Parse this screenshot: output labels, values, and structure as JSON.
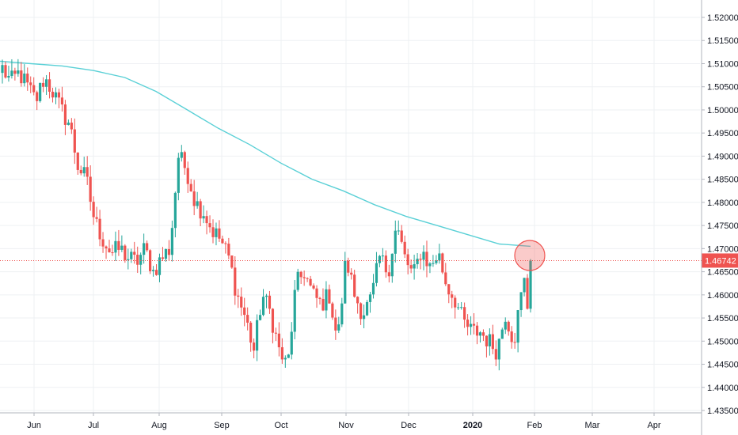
{
  "chart_data": {
    "type": "candlestick",
    "title": "",
    "ylabel": "",
    "xlabel": "",
    "ylim": [
      1.4335,
      1.5225
    ],
    "grid": true,
    "y_ticks": [
      "1.52000",
      "1.51500",
      "1.51000",
      "1.50500",
      "1.50000",
      "1.49500",
      "1.49000",
      "1.48500",
      "1.48000",
      "1.47500",
      "1.47000",
      "1.46500",
      "1.46000",
      "1.45500",
      "1.45000",
      "1.44500",
      "1.44000",
      "1.43500"
    ],
    "x_ticks": [
      {
        "label": "Jun",
        "bold": false
      },
      {
        "label": "Jul",
        "bold": false
      },
      {
        "label": "Aug",
        "bold": false
      },
      {
        "label": "Sep",
        "bold": false
      },
      {
        "label": "Oct",
        "bold": false
      },
      {
        "label": "Nov",
        "bold": false
      },
      {
        "label": "Dec",
        "bold": false
      },
      {
        "label": "2020",
        "bold": true
      },
      {
        "label": "Feb",
        "bold": false
      },
      {
        "label": "Mar",
        "bold": false
      },
      {
        "label": "Apr",
        "bold": false
      }
    ],
    "current_price": {
      "value": 1.46742,
      "label": "1.46742"
    },
    "moving_average": [
      [
        1.5105,
        1.51,
        1.5095,
        1.5085,
        1.507,
        1.504,
        1.5,
        1.496,
        1.4925,
        1.4885,
        1.485,
        1.4825,
        1.4795,
        1.477,
        1.475,
        1.473,
        1.471,
        1.4705
      ]
    ],
    "colors": {
      "up": "#26a69a",
      "down": "#ef5350",
      "ma": "#5ad0d6",
      "price_line": "#ef5350",
      "grid": "#eef0f3",
      "highlight": "#ef5350"
    },
    "anchors": [
      1.509,
      1.506,
      1.508,
      1.505,
      1.502,
      1.507,
      1.504,
      1.5,
      1.497,
      1.488,
      1.485,
      1.476,
      1.472,
      1.469,
      1.47,
      1.468,
      1.467,
      1.47,
      1.465,
      1.468,
      1.47,
      1.49,
      1.487,
      1.48,
      1.478,
      1.474,
      1.472,
      1.468,
      1.46,
      1.455,
      1.448,
      1.46,
      1.456,
      1.448,
      1.444,
      1.462,
      1.465,
      1.46,
      1.458,
      1.46,
      1.45,
      1.468,
      1.46,
      1.456,
      1.459,
      1.468,
      1.465,
      1.475,
      1.468,
      1.464,
      1.47,
      1.466,
      1.469,
      1.462,
      1.459,
      1.454,
      1.452,
      1.452,
      1.45,
      1.448,
      1.456,
      1.45,
      1.461,
      1.468
    ]
  }
}
